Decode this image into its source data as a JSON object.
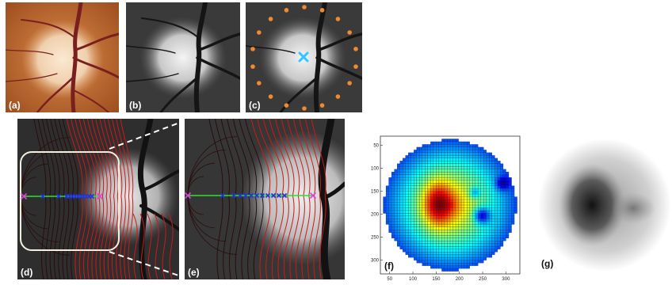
{
  "panels": {
    "a": {
      "label": "(a)"
    },
    "b": {
      "label": "(b)"
    },
    "c": {
      "label": "(c)"
    },
    "d": {
      "label": "(d)"
    },
    "e": {
      "label": "(e)"
    },
    "f": {
      "label": "(f)"
    },
    "g": {
      "label": "(g)"
    }
  },
  "colors": {
    "fundus_bg": "#c26a2c",
    "disc": "#f2d6b4",
    "vessel": "#7a1f1f",
    "contour_red": "#d01818",
    "contour_dark": "#2a0c0c",
    "scan_line": "#2fe02f",
    "scan_point": "#2233dd",
    "endpoint": "#e040e0",
    "boundary_dot": "#f08a30",
    "center_mark": "#2ec8ff",
    "roi_box": "#f4f0e0"
  },
  "chart_data": {
    "type": "heatmap",
    "x_ticks": [
      50,
      100,
      150,
      200,
      250,
      300
    ],
    "y_ticks": [
      50,
      100,
      150,
      200,
      250,
      300
    ],
    "xlim": [
      30,
      330
    ],
    "ylim": [
      30,
      330
    ],
    "colormap": "jet",
    "shape": "disc",
    "grid": true
  }
}
